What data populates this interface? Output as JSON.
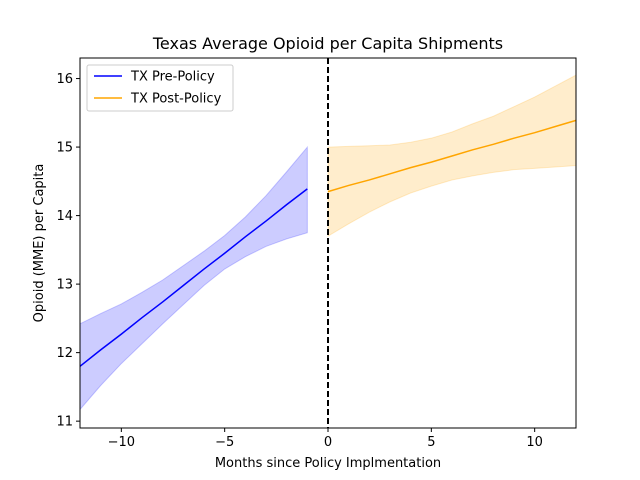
{
  "chart_data": {
    "type": "line",
    "title": "Texas Average Opioid per Capita Shipments",
    "xlabel": "Months since Policy Implmentation",
    "ylabel": "Opioid (MME) per Capita",
    "xlim": [
      -12,
      12
    ],
    "ylim": [
      10.9,
      16.3
    ],
    "xticks": [
      -10,
      -5,
      0,
      5,
      10
    ],
    "xtick_labels": [
      "−10",
      "−5",
      "0",
      "5",
      "10"
    ],
    "yticks": [
      11,
      12,
      13,
      14,
      15,
      16
    ],
    "ytick_labels": [
      "11",
      "12",
      "13",
      "14",
      "15",
      "16"
    ],
    "grid": false,
    "legend_position": "top-left",
    "policy_line": {
      "x": 0,
      "style": "dashed",
      "color": "#000000"
    },
    "series": [
      {
        "name": "TX Pre-Policy",
        "color": "#0000ff",
        "band_color": "#0000ff",
        "band_opacity": 0.2,
        "x": [
          -12,
          -11,
          -10,
          -9,
          -8,
          -7,
          -6,
          -5,
          -4,
          -3,
          -2,
          -1
        ],
        "y": [
          11.8,
          12.04,
          12.27,
          12.51,
          12.74,
          12.98,
          13.22,
          13.45,
          13.69,
          13.92,
          14.16,
          14.39
        ],
        "lower": [
          11.17,
          11.52,
          11.84,
          12.13,
          12.42,
          12.7,
          12.98,
          13.22,
          13.4,
          13.55,
          13.66,
          13.75
        ],
        "upper": [
          12.42,
          12.57,
          12.71,
          12.88,
          13.06,
          13.27,
          13.48,
          13.71,
          13.98,
          14.29,
          14.64,
          15.0
        ]
      },
      {
        "name": "TX Post-Policy",
        "color": "#ffa500",
        "band_color": "#ffa500",
        "band_opacity": 0.2,
        "x": [
          0,
          1,
          2,
          3,
          4,
          5,
          6,
          7,
          8,
          9,
          10,
          11,
          12
        ],
        "y": [
          14.35,
          14.44,
          14.52,
          14.61,
          14.7,
          14.78,
          14.87,
          14.96,
          15.04,
          15.13,
          15.21,
          15.3,
          15.39
        ],
        "lower": [
          13.7,
          13.88,
          14.05,
          14.2,
          14.33,
          14.43,
          14.52,
          14.58,
          14.63,
          14.67,
          14.69,
          14.71,
          14.73
        ],
        "upper": [
          15.0,
          15.01,
          15.02,
          15.03,
          15.07,
          15.13,
          15.22,
          15.34,
          15.45,
          15.59,
          15.73,
          15.89,
          16.05
        ]
      }
    ]
  }
}
